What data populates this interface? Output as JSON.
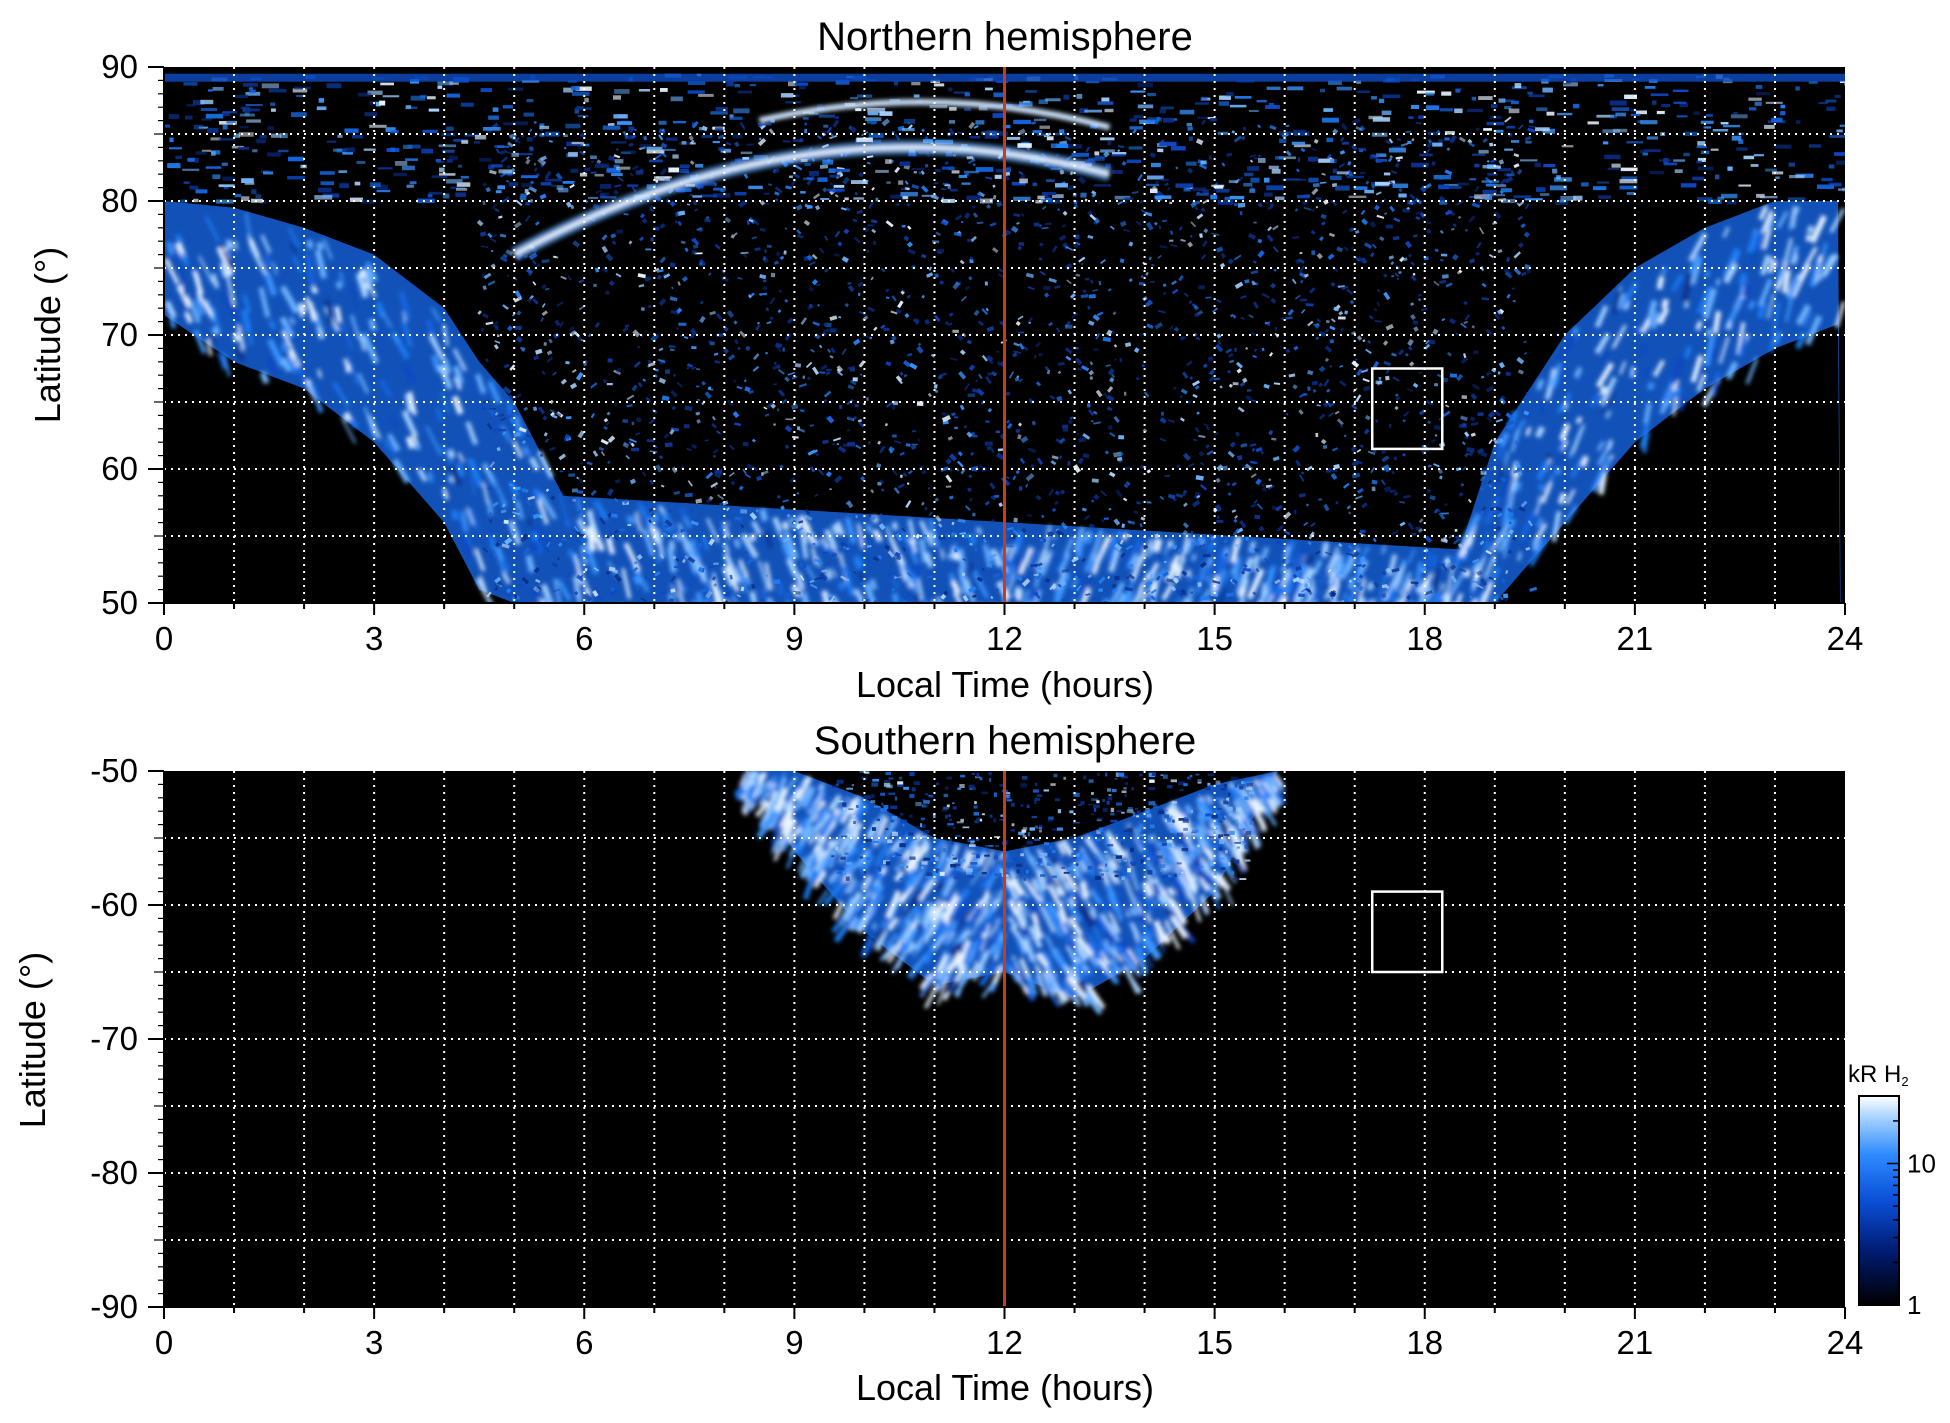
{
  "chart_data": [
    {
      "type": "heatmap",
      "title": "Northern hemisphere",
      "xlabel": "Local Time (hours)",
      "ylabel": "Latitude (°)",
      "xlim": [
        0,
        24
      ],
      "ylim": [
        50,
        90
      ],
      "xticks": [
        "0",
        "3",
        "6",
        "9",
        "12",
        "15",
        "18",
        "21",
        "24"
      ],
      "yticks": [
        "50",
        "60",
        "70",
        "80",
        "90"
      ],
      "grid": true,
      "noon_line_x": 12,
      "box": {
        "x": [
          17.25,
          18.25
        ],
        "y": [
          61.5,
          67.5
        ]
      },
      "emission_band": [
        {
          "lt": 0,
          "lat_low": 71.5,
          "lat_high": 80
        },
        {
          "lt": 1,
          "lat_low": 68,
          "lat_high": 79.5
        },
        {
          "lt": 2,
          "lat_low": 66,
          "lat_high": 78
        },
        {
          "lt": 3,
          "lat_low": 62,
          "lat_high": 76
        },
        {
          "lt": 4,
          "lat_low": 56,
          "lat_high": 72
        },
        {
          "lt": 4.5,
          "lat_low": 51,
          "lat_high": 68
        },
        {
          "lt": 5,
          "lat_low": 50,
          "lat_high": 65
        },
        {
          "lt": 5.7,
          "lat_low": 50,
          "lat_high": 58
        },
        {
          "lt": 18.5,
          "lat_low": 50,
          "lat_high": 54
        },
        {
          "lt": 19,
          "lat_low": 50,
          "lat_high": 62
        },
        {
          "lt": 20,
          "lat_low": 56,
          "lat_high": 70
        },
        {
          "lt": 21,
          "lat_low": 62,
          "lat_high": 75
        },
        {
          "lt": 22,
          "lat_low": 66,
          "lat_high": 78
        },
        {
          "lt": 23,
          "lat_low": 69,
          "lat_high": 80
        },
        {
          "lt": 24,
          "lat_low": 71,
          "lat_high": 80
        }
      ],
      "arc": {
        "lt_start": 5,
        "lt_end": 13.5,
        "lat_center": 79,
        "peak_lat": 84
      }
    },
    {
      "type": "heatmap",
      "title": "Southern hemisphere",
      "xlabel": "Local Time (hours)",
      "ylabel": "Latitude (°)",
      "xlim": [
        0,
        24
      ],
      "ylim": [
        -90,
        -50
      ],
      "xticks": [
        "0",
        "3",
        "6",
        "9",
        "12",
        "15",
        "18",
        "21",
        "24"
      ],
      "yticks": [
        "-50",
        "-60",
        "-70",
        "-80",
        "-90"
      ],
      "grid": true,
      "noon_line_x": 12,
      "box": {
        "x": [
          17.25,
          18.25
        ],
        "y": [
          -65,
          -59
        ]
      },
      "emission_band": [
        {
          "lt": 8.3,
          "lat_low": -50,
          "lat_high": -50
        },
        {
          "lt": 9,
          "lat_low": -56,
          "lat_high": -50
        },
        {
          "lt": 10,
          "lat_low": -62,
          "lat_high": -52
        },
        {
          "lt": 11,
          "lat_low": -66,
          "lat_high": -55
        },
        {
          "lt": 12,
          "lat_low": -65,
          "lat_high": -56
        },
        {
          "lt": 13,
          "lat_low": -67,
          "lat_high": -55
        },
        {
          "lt": 14,
          "lat_low": -64,
          "lat_high": -53
        },
        {
          "lt": 15,
          "lat_low": -59,
          "lat_high": -51
        },
        {
          "lt": 15.9,
          "lat_low": -50,
          "lat_high": -50
        }
      ]
    }
  ],
  "colorbar": {
    "title": "kR H",
    "title_sub": "2",
    "ticks": [
      "1",
      "10"
    ],
    "scale": "log",
    "colors": [
      "#000000",
      "#001a6e",
      "#0a4fd8",
      "#2e8bff",
      "#a9d4ff",
      "#ffffff"
    ]
  },
  "colors": {
    "noon_line": "#c83c1e",
    "grid": "#ffffff",
    "box": "#ffffff",
    "background": "#000000"
  }
}
